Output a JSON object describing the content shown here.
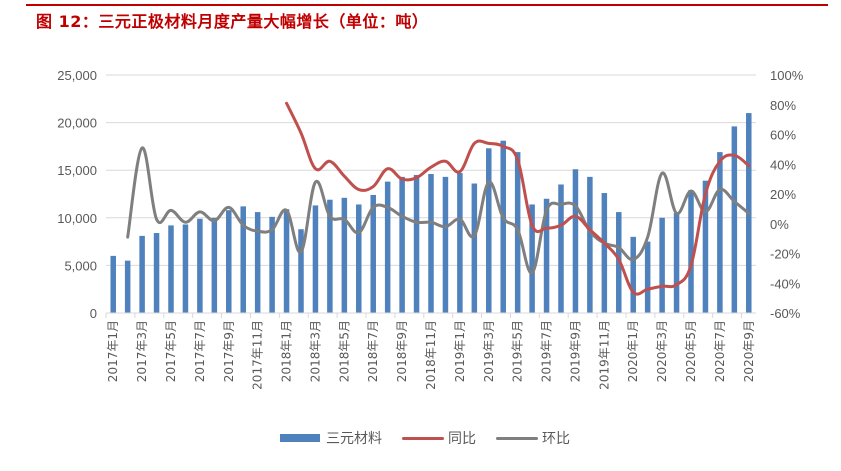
{
  "figure": {
    "title": "图 12：三元正极材料月度产量大幅增长（单位：吨）"
  },
  "colors": {
    "title": "#C00000",
    "bars": "#4F81BD",
    "yoy": "#C0504D",
    "mom": "#7F7F7F",
    "grid": "#D9D9D9",
    "axis_text": "#595959"
  },
  "legend": {
    "bars_label": "三元材料",
    "yoy_label": "同比",
    "mom_label": "环比"
  },
  "chart_data": {
    "type": "bar",
    "title": "图 12：三元正极材料月度产量大幅增长（单位：吨）",
    "xlabel": "",
    "ylabel": "",
    "ylim": [
      0,
      25000
    ],
    "y2lim": [
      -0.6,
      1.0
    ],
    "y_ticks": [
      "0",
      "5,000",
      "10,000",
      "15,000",
      "20,000",
      "25,000"
    ],
    "y2_ticks": [
      "-60%",
      "-40%",
      "-20%",
      "0%",
      "20%",
      "40%",
      "60%",
      "80%",
      "100%"
    ],
    "x_tick_labels": [
      "2017年1月",
      "2017年3月",
      "2017年5月",
      "2017年7月",
      "2017年9月",
      "2017年11月",
      "2018年1月",
      "2018年3月",
      "2018年5月",
      "2018年7月",
      "2018年9月",
      "2018年11月",
      "2019年1月",
      "2019年3月",
      "2019年5月",
      "2019年7月",
      "2019年9月",
      "2019年11月",
      "2020年1月",
      "2020年3月",
      "2020年5月",
      "2020年7月",
      "2020年9月"
    ],
    "grid": true,
    "legend_position": "bottom",
    "categories": [
      "2017-01",
      "2017-02",
      "2017-03",
      "2017-04",
      "2017-05",
      "2017-06",
      "2017-07",
      "2017-08",
      "2017-09",
      "2017-10",
      "2017-11",
      "2017-12",
      "2018-01",
      "2018-02",
      "2018-03",
      "2018-04",
      "2018-05",
      "2018-06",
      "2018-07",
      "2018-08",
      "2018-09",
      "2018-10",
      "2018-11",
      "2018-12",
      "2019-01",
      "2019-02",
      "2019-03",
      "2019-04",
      "2019-05",
      "2019-06",
      "2019-07",
      "2019-08",
      "2019-09",
      "2019-10",
      "2019-11",
      "2019-12",
      "2020-01",
      "2020-02",
      "2020-03",
      "2020-04",
      "2020-05",
      "2020-06",
      "2020-07",
      "2020-08",
      "2020-09"
    ],
    "series": [
      {
        "name": "三元材料",
        "type": "bar",
        "axis": "left",
        "values": [
          6000,
          5500,
          8100,
          8400,
          9200,
          9300,
          9900,
          10000,
          10800,
          11200,
          10600,
          10100,
          10900,
          8800,
          11300,
          11900,
          12100,
          11400,
          12400,
          13800,
          14300,
          14500,
          14600,
          14300,
          14700,
          13600,
          17300,
          18100,
          16900,
          11400,
          12000,
          13500,
          15100,
          14300,
          12600,
          10600,
          8000,
          7500,
          10000,
          10500,
          12900,
          13900,
          16900,
          19600,
          21000
        ]
      },
      {
        "name": "同比",
        "type": "line",
        "axis": "right",
        "values": [
          null,
          null,
          null,
          null,
          null,
          null,
          null,
          null,
          null,
          null,
          null,
          null,
          0.81,
          0.61,
          0.37,
          0.42,
          0.32,
          0.23,
          0.25,
          0.37,
          0.3,
          0.31,
          0.38,
          0.42,
          0.35,
          0.54,
          0.54,
          0.52,
          0.43,
          -0.01,
          -0.03,
          -0.01,
          0.05,
          -0.04,
          -0.13,
          -0.24,
          -0.46,
          -0.44,
          -0.42,
          -0.41,
          -0.28,
          0.2,
          0.42,
          0.46,
          0.39
        ]
      },
      {
        "name": "环比",
        "type": "line",
        "axis": "right",
        "values": [
          null,
          -0.09,
          0.51,
          0.03,
          0.09,
          0.01,
          0.08,
          0.02,
          0.11,
          -0.01,
          -0.05,
          -0.04,
          0.09,
          -0.19,
          0.28,
          0.05,
          0.03,
          -0.06,
          0.11,
          0.11,
          0.05,
          0.01,
          0.01,
          -0.02,
          0.03,
          -0.08,
          0.28,
          0.04,
          -0.04,
          -0.33,
          0.09,
          0.13,
          0.12,
          -0.05,
          -0.13,
          -0.16,
          -0.24,
          -0.09,
          0.34,
          0.07,
          0.22,
          0.08,
          0.23,
          0.15,
          0.07
        ]
      }
    ]
  }
}
